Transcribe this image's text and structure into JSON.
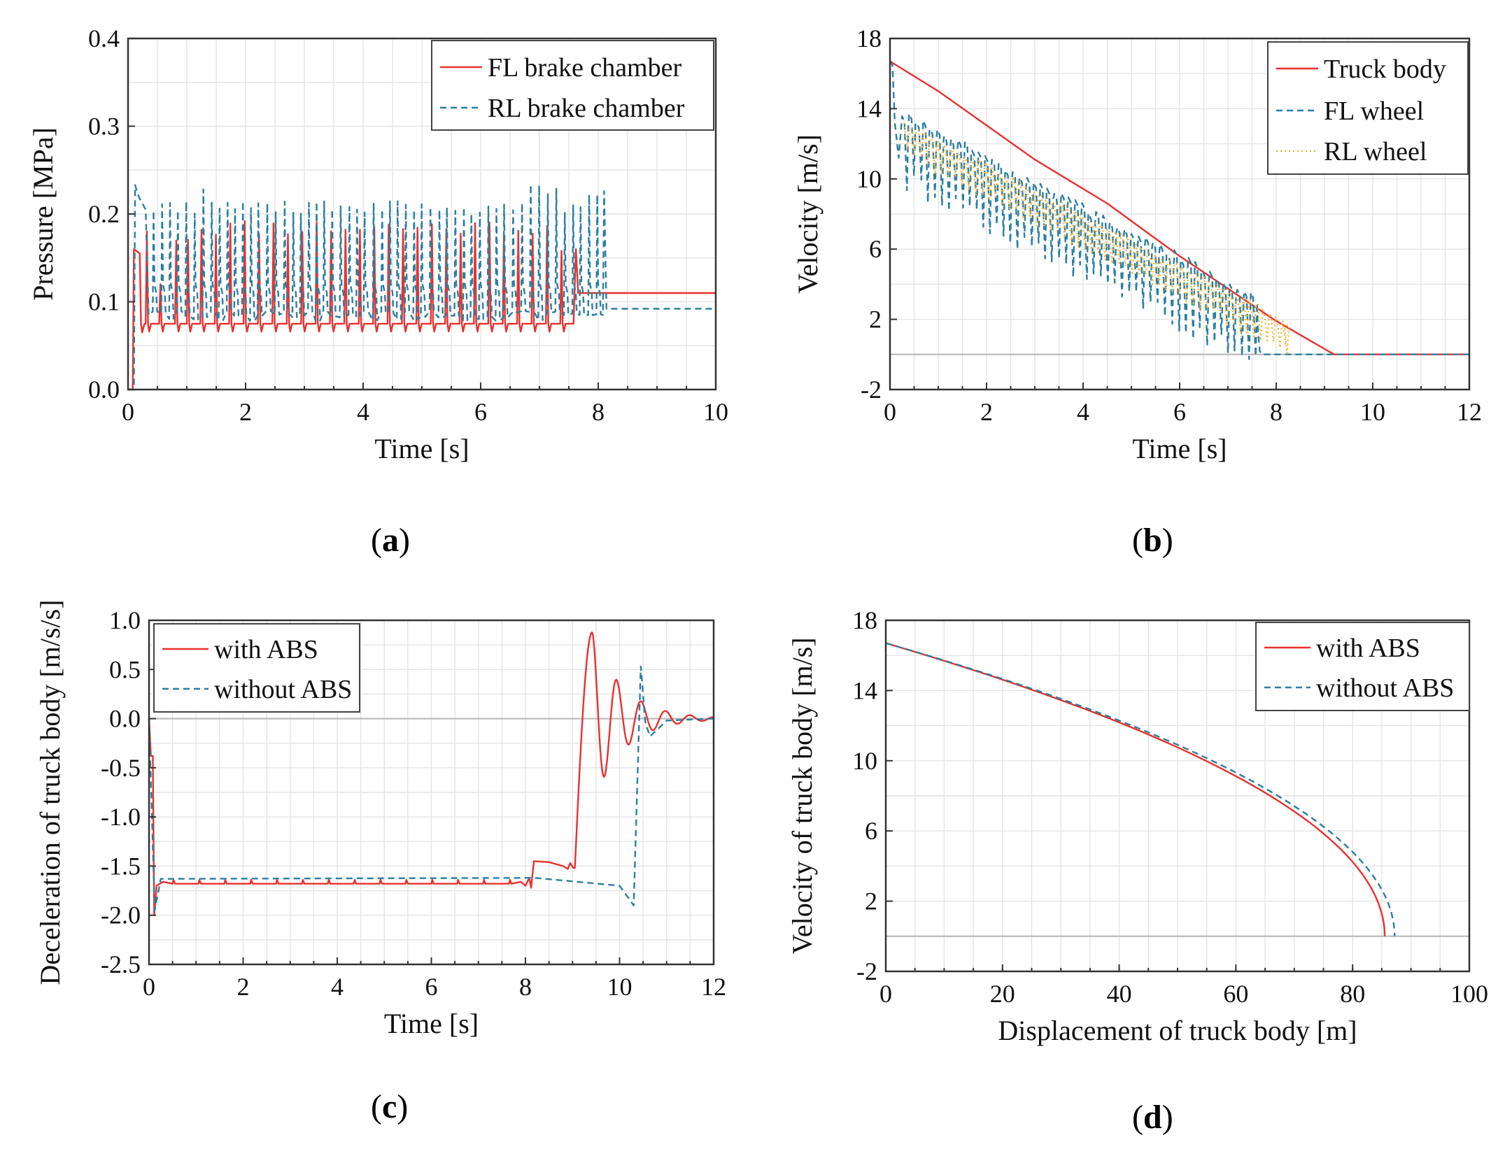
{
  "panels": {
    "a": {
      "caption_open": "(",
      "caption_letter": "a",
      "caption_close": ")"
    },
    "b": {
      "caption_open": "(",
      "caption_letter": "b",
      "caption_close": ")"
    },
    "c": {
      "caption_open": "(",
      "caption_letter": "c",
      "caption_close": ")"
    },
    "d": {
      "caption_open": "(",
      "caption_letter": "d",
      "caption_close": ")"
    }
  },
  "chart_data": [
    {
      "id": "a",
      "type": "line",
      "title": "",
      "xlabel": "Time [s]",
      "ylabel": "Pressure [MPa]",
      "xlim": [
        0,
        10
      ],
      "ylim": [
        0,
        0.4
      ],
      "xticks": [
        0,
        2,
        4,
        6,
        8,
        10
      ],
      "yticks": [
        0,
        0.1,
        0.2,
        0.3,
        0.4
      ],
      "xtick_labels": [
        "0",
        "2",
        "4",
        "6",
        "8",
        "10"
      ],
      "ytick_labels": [
        "0.0",
        "0.1",
        "0.2",
        "0.3",
        "0.4"
      ],
      "legend_position": "top-right",
      "series": [
        {
          "name": "FL brake chamber",
          "color": "#e8312f",
          "dash": "solid",
          "description": "rises at 0.1 s to ~0.16 MPa, then cycles between ~0.07 and ~0.19 MPa until ~7.6 s, then holds ~0.11 MPa",
          "points": [
            [
              0,
              0
            ],
            [
              0.08,
              0
            ],
            [
              0.12,
              0.16
            ],
            [
              0.2,
              0.155
            ],
            [
              0.24,
              0.075
            ],
            [
              1,
              0.075
            ],
            [
              1.5,
              0.19
            ],
            [
              3,
              0.19
            ],
            [
              5,
              0.19
            ],
            [
              6.5,
              0.19
            ],
            [
              7.6,
              0.16
            ],
            [
              7.65,
              0.11
            ],
            [
              10,
              0.11
            ]
          ],
          "hold_value": 0.11
        },
        {
          "name": "RL brake chamber",
          "color": "#2b7fa0",
          "dash": "dashed",
          "description": "rises at 0.1 s to ~0.23 MPa, then cycles between ~0.08 and ~0.21-0.23 MPa until ~8.1 s, then holds ~0.092 MPa",
          "points": [
            [
              0,
              0
            ],
            [
              0.1,
              0
            ],
            [
              0.15,
              0.233
            ],
            [
              0.3,
              0.21
            ],
            [
              0.4,
              0.085
            ],
            [
              1.25,
              0.228
            ],
            [
              4,
              0.21
            ],
            [
              7.2,
              0.235
            ],
            [
              8.1,
              0.225
            ],
            [
              8.15,
              0.092
            ],
            [
              10,
              0.092
            ]
          ],
          "hold_value": 0.092
        }
      ]
    },
    {
      "id": "b",
      "type": "line",
      "title": "",
      "xlabel": "Time [s]",
      "ylabel": "Velocity [m/s]",
      "xlim": [
        0,
        12
      ],
      "ylim": [
        -2,
        18
      ],
      "xticks": [
        0,
        2,
        4,
        6,
        8,
        10,
        12
      ],
      "yticks": [
        -2,
        2,
        6,
        10,
        14,
        18
      ],
      "xtick_labels": [
        "0",
        "2",
        "4",
        "6",
        "8",
        "10",
        "12"
      ],
      "ytick_labels": [
        "-2",
        "2",
        "6",
        "10",
        "14",
        "18"
      ],
      "legend_position": "top-right",
      "series": [
        {
          "name": "Truck body",
          "color": "#e8312f",
          "dash": "solid",
          "points": [
            [
              0,
              16.7
            ],
            [
              1,
              15
            ],
            [
              3,
              11.1
            ],
            [
              4.5,
              8.6
            ],
            [
              6,
              5.6
            ],
            [
              8,
              1.9
            ],
            [
              9.2,
              0
            ],
            [
              12,
              0
            ]
          ]
        },
        {
          "name": "FL wheel",
          "color": "#2b7fa0",
          "dash": "dashed",
          "points": [
            [
              0,
              16.7
            ],
            [
              0.15,
              13
            ],
            [
              0.25,
              11.2
            ],
            [
              0.4,
              13.3
            ],
            [
              2,
              10
            ],
            [
              4,
              6.6
            ],
            [
              6,
              3.6
            ],
            [
              7.6,
              1.2
            ],
            [
              7.7,
              0
            ],
            [
              12,
              0
            ]
          ]
        },
        {
          "name": "RL wheel",
          "color": "#f2b43c",
          "dash": "dotted",
          "points": [
            [
              0.3,
              13.2
            ],
            [
              0.5,
              13.2
            ],
            [
              2,
              10.5
            ],
            [
              4,
              7.5
            ],
            [
              6,
              4.4
            ],
            [
              8,
              1.2
            ],
            [
              8.2,
              0.5
            ]
          ]
        }
      ]
    },
    {
      "id": "c",
      "type": "line",
      "title": "",
      "xlabel": "Time [s]",
      "ylabel": "Deceleration of truck body [m/s/s]",
      "xlim": [
        0,
        12
      ],
      "ylim": [
        -2.5,
        1.0
      ],
      "xticks": [
        0,
        2,
        4,
        6,
        8,
        10,
        12
      ],
      "yticks": [
        -2.5,
        -2.0,
        -1.5,
        -1.0,
        -0.5,
        0.0,
        0.5,
        1.0
      ],
      "xtick_labels": [
        "0",
        "2",
        "4",
        "6",
        "8",
        "10",
        "12"
      ],
      "ytick_labels": [
        "-2.5",
        "-2.0",
        "-1.5",
        "-1.0",
        "-0.5",
        "0.0",
        "0.5",
        "1.0"
      ],
      "legend_position": "top-left",
      "series": [
        {
          "name": "with ABS",
          "color": "#e8312f",
          "dash": "solid",
          "points": [
            [
              0,
              0
            ],
            [
              0.05,
              -0.38
            ],
            [
              0.08,
              -0.38
            ],
            [
              0.12,
              -2.0
            ],
            [
              0.18,
              -1.7
            ],
            [
              8.1,
              -1.68
            ],
            [
              8.2,
              -1.45
            ],
            [
              9.05,
              -1.52
            ],
            [
              9.45,
              0.88
            ],
            [
              9.7,
              -0.53
            ],
            [
              10,
              0.33
            ],
            [
              10.2,
              -0.2
            ],
            [
              10.4,
              0.15
            ],
            [
              10.6,
              -0.07
            ],
            [
              11,
              0.02
            ],
            [
              12,
              0
            ]
          ]
        },
        {
          "name": "without ABS",
          "color": "#2b7fa0",
          "dash": "dashed",
          "points": [
            [
              0,
              0
            ],
            [
              0.12,
              -1.95
            ],
            [
              0.25,
              -1.63
            ],
            [
              8.2,
              -1.62
            ],
            [
              10,
              -1.7
            ],
            [
              10.3,
              -1.9
            ],
            [
              10.45,
              0.53
            ],
            [
              10.55,
              -0.05
            ],
            [
              10.65,
              -0.18
            ],
            [
              11,
              -0.02
            ],
            [
              12,
              0
            ]
          ]
        }
      ]
    },
    {
      "id": "d",
      "type": "line",
      "title": "",
      "xlabel": "Displacement of truck body [m]",
      "ylabel": "Velocity of truck body [m/s]",
      "xlim": [
        0,
        100
      ],
      "ylim": [
        -2,
        18
      ],
      "xticks": [
        0,
        20,
        40,
        60,
        80,
        100
      ],
      "yticks": [
        -2,
        2,
        6,
        10,
        14,
        18
      ],
      "xtick_labels": [
        "0",
        "20",
        "40",
        "60",
        "80",
        "100"
      ],
      "ytick_labels": [
        "-2",
        "2",
        "6",
        "10",
        "14",
        "18"
      ],
      "legend_position": "top-right",
      "series": [
        {
          "name": "with ABS",
          "color": "#e8312f",
          "dash": "solid",
          "stop_distance": 85.5,
          "initial_velocity": 16.7
        },
        {
          "name": "without ABS",
          "color": "#2b7fa0",
          "dash": "dashed",
          "stop_distance": 87.2,
          "initial_velocity": 16.7
        }
      ]
    }
  ]
}
